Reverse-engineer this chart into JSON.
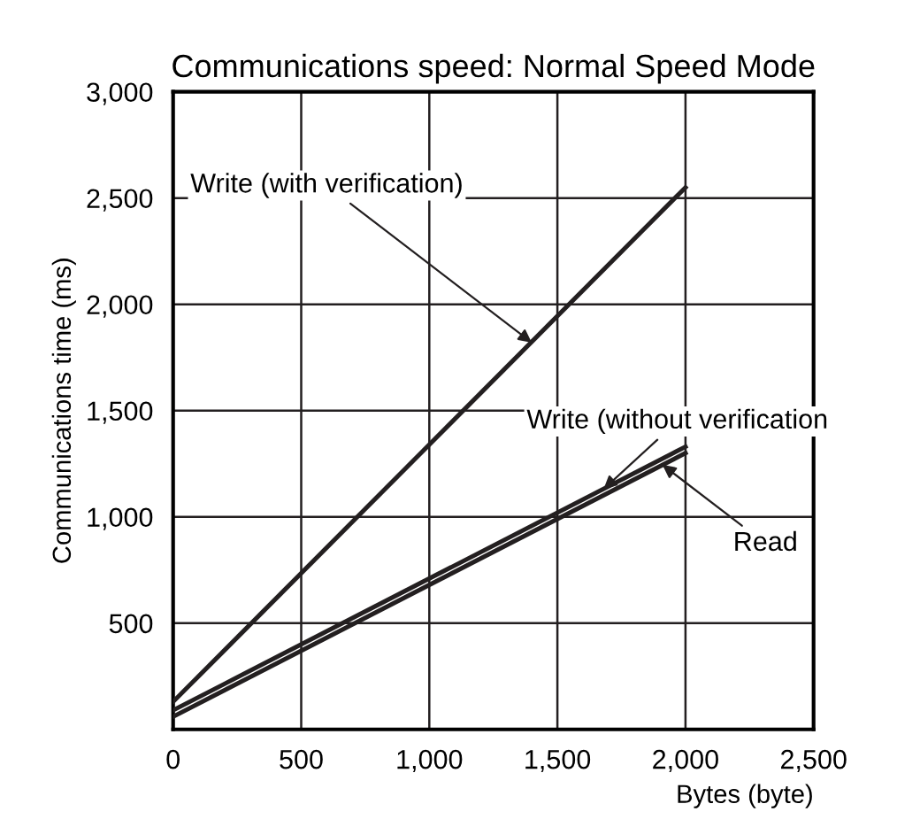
{
  "chart_data": {
    "type": "line",
    "title": "Communications speed: Normal Speed Mode",
    "xlabel": "Bytes (byte)",
    "ylabel": "Communications time (ms)",
    "x": [
      0,
      2000
    ],
    "series": [
      {
        "color": "#231f20",
        "values": [
          130,
          2550
        ]
      },
      {
        "color": "#231f20",
        "values": [
          90,
          1330
        ]
      },
      {
        "color": "#231f20",
        "values": [
          60,
          1300
        ]
      }
    ],
    "annotations": [
      {
        "text": "Write (with verification)",
        "x": 1400,
        "y": 1820
      },
      {
        "text": "Write (without verification",
        "x": 1680,
        "y": 1130
      },
      {
        "text": "Read",
        "x": 1910,
        "y": 1245
      }
    ],
    "xlim": [
      0,
      2500
    ],
    "ylim": [
      0,
      3000
    ],
    "xticks": [
      {
        "value": 0,
        "label": "0"
      },
      {
        "value": 500,
        "label": "500"
      },
      {
        "value": 1000,
        "label": "1,000"
      },
      {
        "value": 1500,
        "label": "1,500"
      },
      {
        "value": 2000,
        "label": "2,000"
      },
      {
        "value": 2500,
        "label": "2,500"
      }
    ],
    "yticks": [
      {
        "value": 500,
        "label": "500"
      },
      {
        "value": 1000,
        "label": "1,000"
      },
      {
        "value": 1500,
        "label": "1,500"
      },
      {
        "value": 2000,
        "label": "2,000"
      },
      {
        "value": 2500,
        "label": "2,500"
      },
      {
        "value": 3000,
        "label": "3,000"
      }
    ],
    "grid": true,
    "legend": false,
    "marker": "none",
    "line_style": "solid"
  }
}
